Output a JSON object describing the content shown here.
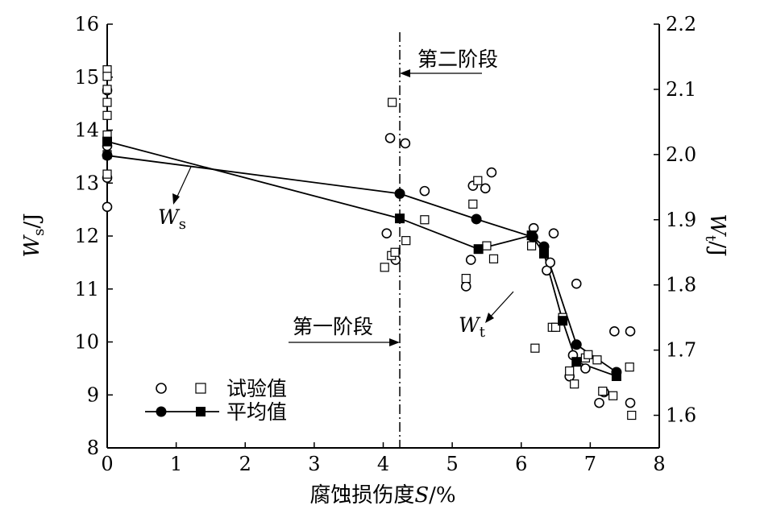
{
  "chart_data": {
    "type": "scatter",
    "x_axis": {
      "label": "腐蚀损伤度",
      "label_var": "S",
      "label_unit": "/%",
      "min": 0,
      "max": 8,
      "ticks": [
        "0",
        "1",
        "2",
        "3",
        "4",
        "5",
        "6",
        "7",
        "8"
      ]
    },
    "y_left": {
      "label_var": "W",
      "label_sub": "s",
      "label_unit": "/J",
      "min": 8,
      "max": 16,
      "ticks": [
        "8",
        "9",
        "10",
        "11",
        "12",
        "13",
        "14",
        "15",
        "16"
      ]
    },
    "y_right": {
      "label_var": "W",
      "label_sub": "t",
      "label_unit": "/J",
      "min": 1.55,
      "max": 2.2,
      "ticks": [
        "1.6",
        "1.7",
        "1.8",
        "1.9",
        "2.0",
        "2.1",
        "2.2"
      ]
    },
    "legend": {
      "placement": "bottom-left",
      "test_label": "试验值",
      "mean_label": "平均值"
    },
    "annotations": {
      "stage1": "第一阶段",
      "stage2": "第二阶段",
      "stage_boundary_x": 4.24,
      "ws_label_var": "W",
      "ws_label_sub": "s",
      "wt_label_var": "W",
      "wt_label_sub": "t"
    },
    "series": [
      {
        "key": "ws_test",
        "axis": "left",
        "marker": "circle",
        "points": [
          [
            0,
            14.75
          ],
          [
            0,
            13.7
          ],
          [
            0,
            13.1
          ],
          [
            0,
            12.55
          ],
          [
            4.05,
            12.05
          ],
          [
            4.1,
            13.85
          ],
          [
            4.18,
            11.55
          ],
          [
            4.32,
            13.75
          ],
          [
            4.6,
            12.85
          ],
          [
            5.2,
            11.05
          ],
          [
            5.27,
            11.55
          ],
          [
            5.3,
            12.95
          ],
          [
            5.48,
            12.9
          ],
          [
            5.57,
            13.2
          ],
          [
            6.18,
            12.15
          ],
          [
            6.37,
            11.35
          ],
          [
            6.42,
            11.5
          ],
          [
            6.47,
            12.05
          ],
          [
            6.7,
            9.35
          ],
          [
            6.75,
            9.75
          ],
          [
            6.8,
            11.1
          ],
          [
            6.93,
            9.5
          ],
          [
            7.13,
            8.85
          ],
          [
            7.2,
            9.05
          ],
          [
            7.35,
            10.2
          ],
          [
            7.58,
            10.2
          ],
          [
            7.58,
            8.85
          ]
        ]
      },
      {
        "key": "wt_test",
        "axis": "right",
        "marker": "square",
        "points": [
          [
            0,
            2.13
          ],
          [
            0,
            2.12
          ],
          [
            0,
            2.1
          ],
          [
            0,
            2.08
          ],
          [
            0,
            2.06
          ],
          [
            0,
            2.03
          ],
          [
            0,
            2.0
          ],
          [
            0,
            1.97
          ],
          [
            4.02,
            1.827
          ],
          [
            4.12,
            1.845
          ],
          [
            4.13,
            2.08
          ],
          [
            4.17,
            1.85
          ],
          [
            4.33,
            1.868
          ],
          [
            4.6,
            1.9
          ],
          [
            5.2,
            1.81
          ],
          [
            5.3,
            1.924
          ],
          [
            5.37,
            1.96
          ],
          [
            5.5,
            1.86
          ],
          [
            5.6,
            1.84
          ],
          [
            6.15,
            1.86
          ],
          [
            6.2,
            1.703
          ],
          [
            6.45,
            1.735
          ],
          [
            6.5,
            1.735
          ],
          [
            6.6,
            1.75
          ],
          [
            6.7,
            1.668
          ],
          [
            6.77,
            1.648
          ],
          [
            6.93,
            1.688
          ],
          [
            6.97,
            1.693
          ],
          [
            7.1,
            1.685
          ],
          [
            7.18,
            1.637
          ],
          [
            7.33,
            1.63
          ],
          [
            7.57,
            1.674
          ],
          [
            7.6,
            1.6
          ]
        ]
      },
      {
        "key": "ws_mean",
        "axis": "left",
        "marker": "filled-circle",
        "points": [
          [
            0,
            13.52
          ],
          [
            4.24,
            12.8
          ],
          [
            5.35,
            12.32
          ],
          [
            6.17,
            11.98
          ],
          [
            6.33,
            11.8
          ],
          [
            6.8,
            9.95
          ],
          [
            7.38,
            9.43
          ]
        ]
      },
      {
        "key": "wt_mean",
        "axis": "right",
        "marker": "filled-square",
        "points": [
          [
            0,
            2.02
          ],
          [
            4.24,
            1.902
          ],
          [
            5.38,
            1.855
          ],
          [
            6.15,
            1.876
          ],
          [
            6.33,
            1.848
          ],
          [
            6.6,
            1.745
          ],
          [
            6.8,
            1.682
          ],
          [
            7.38,
            1.66
          ]
        ]
      }
    ]
  }
}
